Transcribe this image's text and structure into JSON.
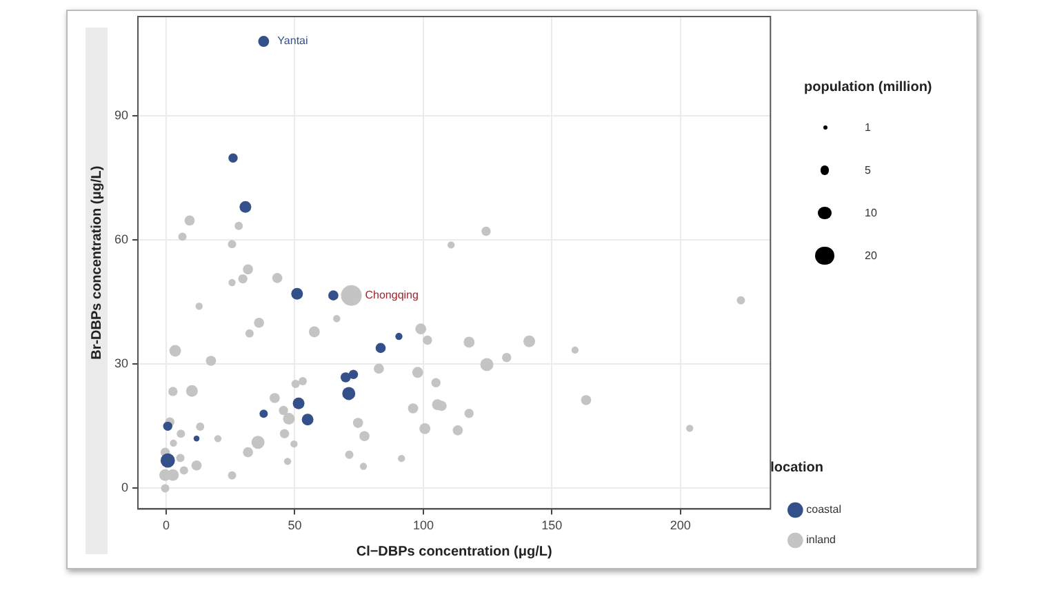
{
  "chart_data": {
    "type": "bubble",
    "xlabel": "Cl−DBPs concentration (μg/L)",
    "ylabel": "Br-DBPs concentration (μg/L)",
    "legend_title": "location",
    "xlim": [
      -11,
      235
    ],
    "ylim": [
      -5,
      114
    ],
    "xticks": [
      0,
      50,
      100,
      150,
      200
    ],
    "yticks": [
      0,
      30,
      60,
      90
    ],
    "grid": true,
    "legend": "right",
    "marker": "circle",
    "size_legend": [
      1,
      5,
      10,
      20
    ],
    "series": [
      {
        "name": "coastal",
        "color": "#34508a",
        "x": [
          37.9,
          26,
          30.8,
          50.9,
          65,
          90.5,
          83.4,
          69.8,
          72.8,
          71,
          51.5,
          55,
          37.9,
          11.8,
          0.6,
          0.6
        ],
        "values": [
          108,
          79.8,
          68,
          47,
          46.6,
          36.7,
          33.9,
          26.8,
          27.5,
          22.9,
          20.5,
          16.6,
          18,
          12,
          15,
          6.7
        ],
        "sizes": [
          7,
          5,
          8,
          8,
          6,
          3,
          6,
          6,
          5,
          10,
          8,
          8,
          4,
          2,
          5,
          12
        ]
      },
      {
        "name": "inland",
        "color": "#c4c4c4",
        "x": [
          31.8,
          29.8,
          25.6,
          43.2,
          72,
          12.8,
          66.3,
          36.1,
          32.4,
          57.6,
          99,
          101.6,
          3.5,
          17.4,
          82.7,
          97.8,
          53.1,
          50.3,
          104.9,
          2.6,
          10,
          42.2,
          45.6,
          47.7,
          96,
          105.5,
          107.1,
          74.6,
          77.1,
          100.6,
          113.4,
          46,
          49.7,
          35.7,
          31.8,
          47.2,
          71.2,
          76.7,
          91.5,
          25.6,
          20.1,
          13.2,
          11.8,
          5.7,
          2.8,
          1.4,
          5.5,
          6.9,
          2.6,
          -0.4,
          -0.4,
          -0.4,
          9.1,
          28.2,
          6.3,
          25.6,
          110.8,
          124.4,
          223.5,
          117.8,
          141.2,
          132.4,
          124.7,
          159,
          117.8,
          163.3,
          203.6
        ],
        "values": [
          52.9,
          50.6,
          49.7,
          50.8,
          46.6,
          44,
          41,
          40,
          37.4,
          37.8,
          38.5,
          35.8,
          33.2,
          30.8,
          28.9,
          28,
          25.9,
          25.2,
          25.5,
          23.4,
          23.5,
          21.8,
          18.8,
          16.8,
          19.3,
          20.2,
          19.9,
          15.8,
          12.6,
          14.4,
          14,
          13.2,
          10.7,
          11.1,
          8.7,
          6.5,
          8.1,
          5.3,
          7.2,
          3.1,
          12,
          14.9,
          5.5,
          13.2,
          10.9,
          16,
          7.3,
          4.3,
          3.2,
          3.2,
          0,
          8.7,
          64.7,
          63.4,
          60.8,
          59,
          58.8,
          62.1,
          45.4,
          35.3,
          35.5,
          31.6,
          29.9,
          33.4,
          18.1,
          21.3,
          14.5
        ],
        "sizes": [
          6,
          5,
          3,
          6,
          25,
          3,
          3,
          6,
          4,
          7,
          7,
          5,
          8,
          6,
          6,
          7,
          4,
          4,
          5,
          5,
          8,
          6,
          5,
          8,
          6,
          7,
          6,
          6,
          6,
          7,
          6,
          5,
          3,
          10,
          6,
          3,
          4,
          3,
          3,
          4,
          3,
          4,
          6,
          4,
          3,
          5,
          4,
          4,
          8,
          8,
          4,
          5,
          6,
          4,
          4,
          4,
          3,
          5,
          4,
          7,
          8,
          5,
          10,
          3,
          5,
          6,
          3
        ]
      }
    ],
    "annotations": [
      "population (million)",
      {
        "text": "Yantai",
        "x": 37.9,
        "y": 108
      },
      {
        "text": "Chongqing",
        "x": 72,
        "y": 46.6
      }
    ]
  }
}
